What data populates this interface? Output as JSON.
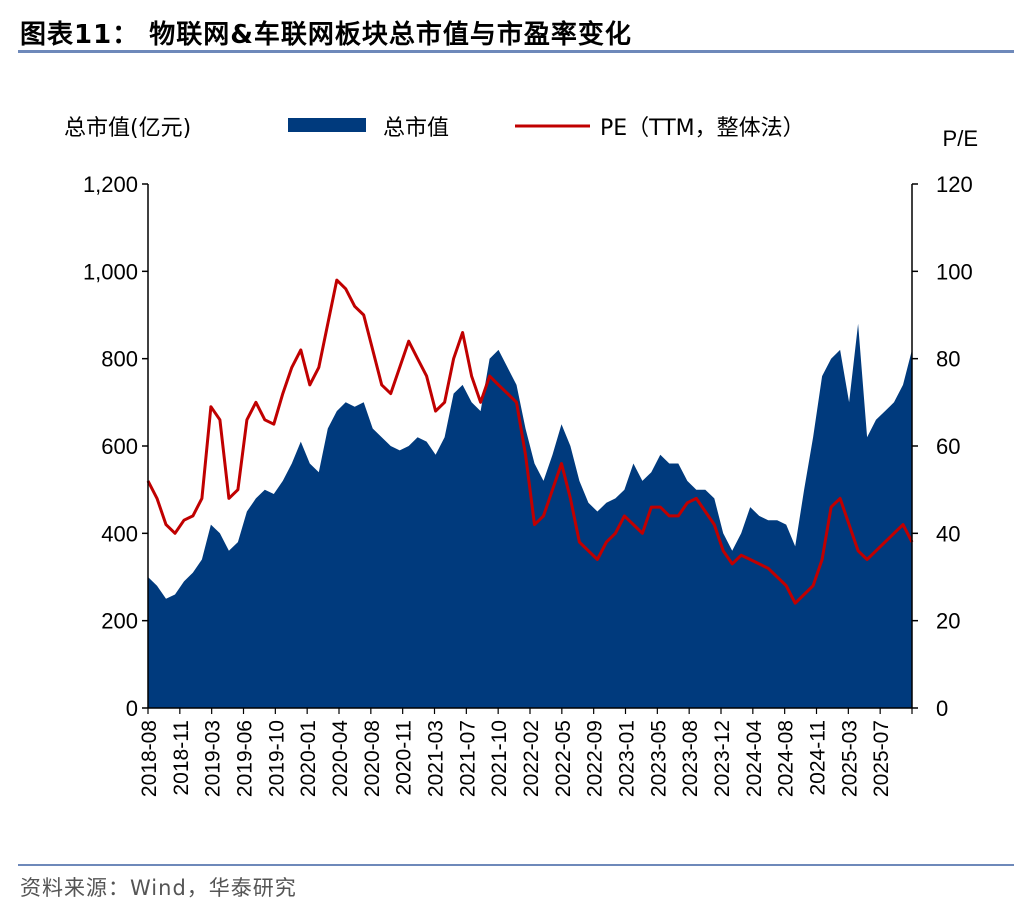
{
  "page": {
    "title": "图表11： 物联网&车联网板块总市值与市盈率变化",
    "source": "资料来源：Wind，华泰研究"
  },
  "colors": {
    "market_cap": "#003A7D",
    "pe": "#C00000",
    "rule": "#6E89BA"
  },
  "chart_data": {
    "type": "area+line",
    "left_axis_label": "总市值(亿元)",
    "right_axis_label": "P/E",
    "legend": [
      "总市值",
      "PE（TTM，整体法）"
    ],
    "legend_placement": "top",
    "ylim_left": [
      0,
      1200
    ],
    "yticks_left": [
      "0",
      "200",
      "400",
      "600",
      "800",
      "1,000",
      "1,200"
    ],
    "ylim_right": [
      0,
      120
    ],
    "yticks_right": [
      "0",
      "20",
      "40",
      "60",
      "80",
      "100",
      "120"
    ],
    "xticks": [
      "2018-08",
      "2018-11",
      "2019-03",
      "2019-06",
      "2019-10",
      "2020-01",
      "2020-04",
      "2020-08",
      "2020-11",
      "2021-03",
      "2021-07",
      "2021-10",
      "2022-02",
      "2022-05",
      "2022-09",
      "2023-01",
      "2023-05",
      "2023-08",
      "2023-12",
      "2024-04",
      "2024-08",
      "2024-11",
      "2025-03",
      "2025-07"
    ],
    "x": [
      "2018-08",
      "2018-09",
      "2018-10",
      "2018-11",
      "2018-12",
      "2019-01",
      "2019-02",
      "2019-03",
      "2019-04",
      "2019-05",
      "2019-06",
      "2019-07",
      "2019-08",
      "2019-09",
      "2019-10",
      "2019-11",
      "2019-12",
      "2020-01",
      "2020-02",
      "2020-03",
      "2020-04",
      "2020-05",
      "2020-06",
      "2020-07",
      "2020-08",
      "2020-09",
      "2020-10",
      "2020-11",
      "2020-12",
      "2021-01",
      "2021-02",
      "2021-03",
      "2021-04",
      "2021-05",
      "2021-06",
      "2021-07",
      "2021-08",
      "2021-09",
      "2021-10",
      "2021-11",
      "2021-12",
      "2022-01",
      "2022-02",
      "2022-03",
      "2022-04",
      "2022-05",
      "2022-06",
      "2022-07",
      "2022-08",
      "2022-09",
      "2022-10",
      "2022-11",
      "2022-12",
      "2023-01",
      "2023-02",
      "2023-03",
      "2023-04",
      "2023-05",
      "2023-06",
      "2023-07",
      "2023-08",
      "2023-09",
      "2023-10",
      "2023-11",
      "2023-12",
      "2024-01",
      "2024-02",
      "2024-03",
      "2024-04",
      "2024-05",
      "2024-06",
      "2024-07",
      "2024-08",
      "2024-09",
      "2024-10",
      "2024-11",
      "2024-12",
      "2025-01",
      "2025-02",
      "2025-03",
      "2025-04",
      "2025-05",
      "2025-06",
      "2025-07",
      "2025-08",
      "2025-09"
    ],
    "series": [
      {
        "name": "总市值",
        "axis": "left",
        "type": "area",
        "values": [
          300,
          280,
          250,
          260,
          290,
          310,
          340,
          420,
          400,
          360,
          380,
          450,
          480,
          500,
          490,
          520,
          560,
          610,
          560,
          540,
          640,
          680,
          700,
          690,
          700,
          640,
          620,
          600,
          590,
          600,
          620,
          610,
          580,
          620,
          720,
          740,
          700,
          680,
          800,
          820,
          780,
          740,
          640,
          560,
          520,
          580,
          650,
          600,
          520,
          470,
          450,
          470,
          480,
          500,
          560,
          520,
          540,
          580,
          560,
          560,
          520,
          500,
          500,
          480,
          400,
          360,
          400,
          460,
          440,
          430,
          430,
          420,
          370,
          500,
          620,
          760,
          800,
          820,
          700,
          880,
          620,
          660,
          680,
          700,
          740,
          820
        ]
      },
      {
        "name": "PE（TTM，整体法）",
        "axis": "right",
        "type": "line",
        "values": [
          52,
          48,
          42,
          40,
          43,
          44,
          48,
          69,
          66,
          48,
          50,
          66,
          70,
          66,
          65,
          72,
          78,
          82,
          74,
          78,
          88,
          98,
          96,
          92,
          90,
          82,
          74,
          72,
          78,
          84,
          80,
          76,
          68,
          70,
          80,
          86,
          76,
          70,
          76,
          74,
          72,
          70,
          58,
          42,
          44,
          50,
          56,
          48,
          38,
          36,
          34,
          38,
          40,
          44,
          42,
          40,
          46,
          46,
          44,
          44,
          47,
          48,
          45,
          42,
          36,
          33,
          35,
          34,
          33,
          32,
          30,
          28,
          24,
          26,
          28,
          34,
          46,
          48,
          42,
          36,
          34,
          36,
          38,
          40,
          42,
          38
        ]
      }
    ]
  }
}
